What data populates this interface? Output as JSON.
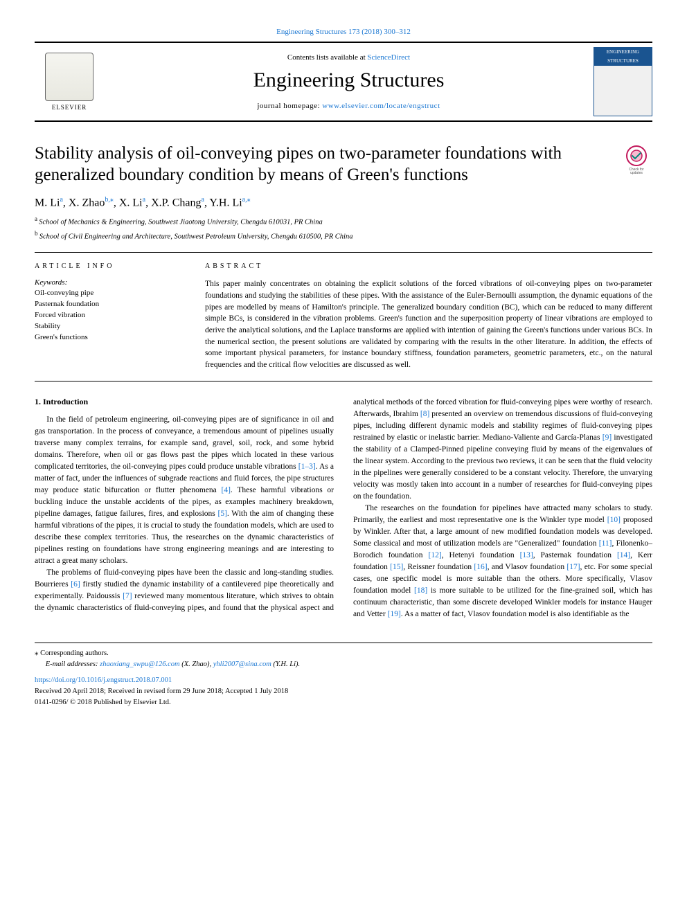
{
  "top_link": {
    "volume_text": "Engineering Structures 173 (2018) 300–312",
    "href_text": "Engineering Structures 173 (2018) 300–312"
  },
  "header": {
    "contents_prefix": "Contents lists available at ",
    "contents_link": "ScienceDirect",
    "journal": "Engineering Structures",
    "homepage_prefix": "journal homepage: ",
    "homepage_url": "www.elsevier.com/locate/engstruct",
    "elsevier_name": "ELSEVIER",
    "cover_line1": "ENGINEERING",
    "cover_line2": "STRUCTURES"
  },
  "article": {
    "title": "Stability analysis of oil-conveying pipes on two-parameter foundations with generalized boundary condition by means of Green's functions",
    "authors_html": "M. Li",
    "authors": [
      {
        "name": "M. Li",
        "aff": "a"
      },
      {
        "name": "X. Zhao",
        "aff": "b,⁎"
      },
      {
        "name": "X. Li",
        "aff": "a"
      },
      {
        "name": "X.P. Chang",
        "aff": "a"
      },
      {
        "name": "Y.H. Li",
        "aff": "a,⁎"
      }
    ],
    "affiliations": [
      {
        "marker": "a",
        "text": "School of Mechanics & Engineering, Southwest Jiaotong University, Chengdu 610031, PR China"
      },
      {
        "marker": "b",
        "text": "School of Civil Engineering and Architecture, Southwest Petroleum University, Chengdu 610500, PR China"
      }
    ],
    "check_updates_label": "Check for updates"
  },
  "meta": {
    "article_info_head": "ARTICLE INFO",
    "abstract_head": "ABSTRACT",
    "keywords_head": "Keywords:",
    "keywords": [
      "Oil-conveying pipe",
      "Pasternak foundation",
      "Forced vibration",
      "Stability",
      "Green's functions"
    ],
    "abstract": "This paper mainly concentrates on obtaining the explicit solutions of the forced vibrations of oil-conveying pipes on two-parameter foundations and studying the stabilities of these pipes. With the assistance of the Euler-Bernoulli assumption, the dynamic equations of the pipes are modelled by means of Hamilton's principle. The generalized boundary condition (BC), which can be reduced to many different simple BCs, is considered in the vibration problems. Green's function and the superposition property of linear vibrations are employed to derive the analytical solutions, and the Laplace transforms are applied with intention of gaining the Green's functions under various BCs. In the numerical section, the present solutions are validated by comparing with the results in the other literature. In addition, the effects of some important physical parameters, for instance boundary stiffness, foundation parameters, geometric parameters, etc., on the natural frequencies and the critical flow velocities are discussed as well."
  },
  "body": {
    "section1_title": "1. Introduction",
    "p1": "In the field of petroleum engineering, oil-conveying pipes are of significance in oil and gas transportation. In the process of conveyance, a tremendous amount of pipelines usually traverse many complex terrains, for example sand, gravel, soil, rock, and some hybrid domains. Therefore, when oil or gas flows past the pipes which located in these various complicated territories, the oil-conveying pipes could produce unstable vibrations ",
    "r1": "[1–3]",
    "p1b": ". As a matter of fact, under the influences of subgrade reactions and fluid forces, the pipe structures may produce static bifurcation or flutter phenomena ",
    "r2": "[4]",
    "p1c": ". These harmful vibrations or buckling induce the unstable accidents of the pipes, as examples machinery breakdown, pipeline damages, fatigue failures, fires, and explosions ",
    "r3": "[5]",
    "p1d": ". With the aim of changing these harmful vibrations of the pipes, it is crucial to study the foundation models, which are used to describe these complex territories. Thus, the researches on the dynamic characteristics of pipelines resting on foundations have strong engineering meanings and are interesting to attract a great many scholars.",
    "p2a": "The problems of fluid-conveying pipes have been the classic and long-standing studies. Bourrieres ",
    "r4": "[6]",
    "p2b": " firstly studied the dynamic instability of a cantilevered pipe theoretically and experimentally. Paidoussis ",
    "r5": "[7]",
    "p2c": " reviewed many momentous literature, which strives to obtain the dynamic characteristics of fluid-conveying pipes, and found that the physical aspect and analytical methods of the forced vibration for fluid-conveying pipes were worthy of research. Afterwards, Ibrahim ",
    "r6": "[8]",
    "p2d": " presented an overview on tremendous discussions of fluid-conveying pipes, including different dynamic models and stability regimes of fluid-conveying pipes restrained by elastic or inelastic barrier. Mediano-Valiente and García-Planas ",
    "r7": "[9]",
    "p2e": " investigated the stability of a Clamped-Pinned pipeline conveying fluid by means of the eigenvalues of the linear system. According to the previous two reviews, it can be seen that the fluid velocity in the pipelines were generally considered to be a constant velocity. Therefore, the unvarying velocity was mostly taken into account in a number of researches for fluid-conveying pipes on the foundation.",
    "p3a": "The researches on the foundation for pipelines have attracted many scholars to study. Primarily, the earliest and most representative one is the Winkler type model ",
    "r8": "[10]",
    "p3b": " proposed by Winkler. After that, a large amount of new modified foundation models was developed. Some classical and most of utilization models are \"Generalized\" foundation ",
    "r9": "[11]",
    "p3c": ", Filonenko–Borodich foundation ",
    "r10": "[12]",
    "p3d": ", Hetenyi foundation ",
    "r11": "[13]",
    "p3e": ", Pasternak foundation ",
    "r12": "[14]",
    "p3f": ", Kerr foundation ",
    "r13": "[15]",
    "p3g": ", Reissner foundation ",
    "r14": "[16]",
    "p3h": ", and Vlasov foundation ",
    "r15": "[17]",
    "p3i": ", etc. For some special cases, one specific model is more suitable than the others. More specifically, Vlasov foundation model ",
    "r16": "[18]",
    "p3j": " is more suitable to be utilized for the fine-grained soil, which has continuum characteristic, than some discrete developed Winkler models for instance Hauger and Vetter ",
    "r17": "[19]",
    "p3k": ". As a matter of fact, Vlasov foundation model is also identifiable as the"
  },
  "footer": {
    "corr_marker": "⁎",
    "corr_text": "Corresponding authors.",
    "email_label": "E-mail addresses: ",
    "email1": "zhaoxiang_swpu@126.com",
    "email1_who": " (X. Zhao), ",
    "email2": "yhli2007@sina.com",
    "email2_who": " (Y.H. Li).",
    "doi": "https://doi.org/10.1016/j.engstruct.2018.07.001",
    "received": "Received 20 April 2018; Received in revised form 29 June 2018; Accepted 1 July 2018",
    "issn_copy": "0141-0296/ © 2018 Published by Elsevier Ltd."
  },
  "colors": {
    "link": "#1976d2",
    "rule": "#000000",
    "cover_blue": "#1a5490"
  }
}
